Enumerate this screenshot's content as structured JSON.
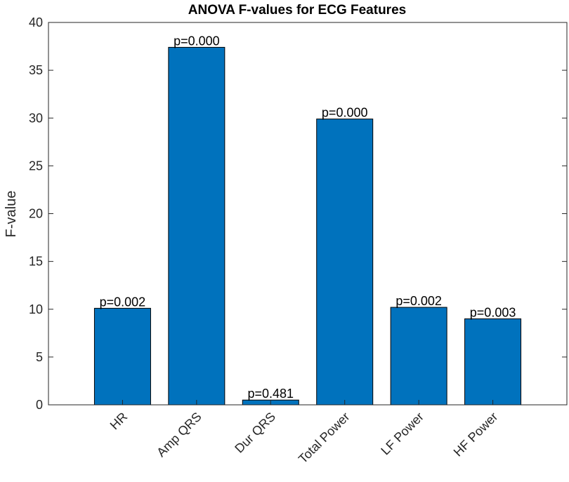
{
  "chart_data": {
    "type": "bar",
    "title": "ANOVA F-values for ECG Features",
    "xlabel": "",
    "ylabel": "F-value",
    "ylim": [
      0,
      40
    ],
    "yticks": [
      0,
      5,
      10,
      15,
      20,
      25,
      30,
      35,
      40
    ],
    "categories": [
      "HR",
      "Amp QRS",
      "Dur QRS",
      "Total Power",
      "LF Power",
      "HF Power"
    ],
    "values": [
      10.1,
      37.4,
      0.5,
      29.9,
      10.2,
      9.0
    ],
    "data_labels": [
      "p=0.002",
      "p=0.000",
      "p=0.481",
      "p=0.000",
      "p=0.002",
      "p=0.003"
    ],
    "bar_color": "#0072BD",
    "grid": false,
    "box": true
  }
}
